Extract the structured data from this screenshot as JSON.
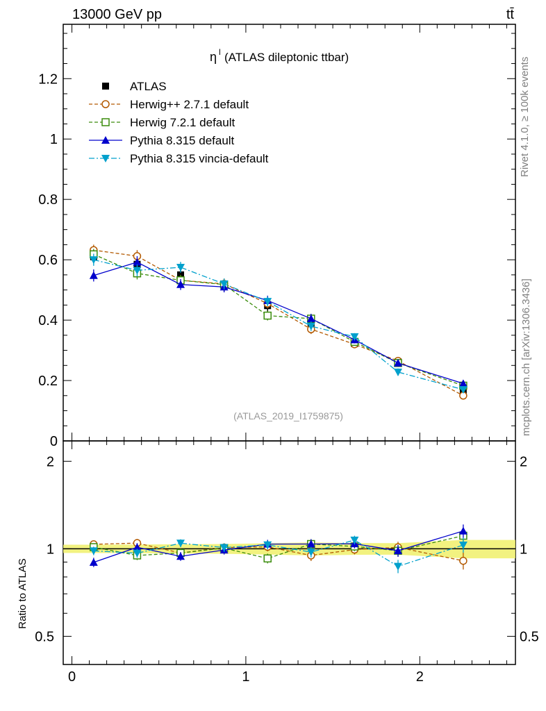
{
  "header": {
    "left": "13000 GeV pp",
    "right": "tt̄"
  },
  "side": {
    "rivet": "Rivet 4.1.0, ≥ 100k events",
    "mcplots": "mcplots.cern.ch [arXiv:1306.3436]"
  },
  "chart_data": {
    "type": "line",
    "title": "η",
    "title_sup": "l",
    "title_rest": "(ATLAS dileptonic ttbar)",
    "watermark": "(ATLAS_2019_I1759875)",
    "xlim": [
      -0.05,
      2.55
    ],
    "ylim": [
      0,
      1.38
    ],
    "ratio_ylim": [
      0.4,
      2.35
    ],
    "ratio_ylabel": "Ratio to ATLAS",
    "x": [
      0.125,
      0.375,
      0.625,
      0.875,
      1.125,
      1.375,
      1.625,
      1.875,
      2.25
    ],
    "x_ticks": [
      {
        "v": 0,
        "label": "0"
      },
      {
        "v": 1,
        "label": "1"
      },
      {
        "v": 2,
        "label": "2"
      }
    ],
    "y_ticks": [
      {
        "v": 0,
        "label": "0"
      },
      {
        "v": 0.2,
        "label": "0.2"
      },
      {
        "v": 0.4,
        "label": "0.4"
      },
      {
        "v": 0.6,
        "label": "0.6"
      },
      {
        "v": 0.8,
        "label": "0.8"
      },
      {
        "v": 1.0,
        "label": "1"
      },
      {
        "v": 1.2,
        "label": "1.2"
      }
    ],
    "ratio_ticks": [
      {
        "v": 0.5,
        "label": "0.5"
      },
      {
        "v": 1,
        "label": "1"
      },
      {
        "v": 2,
        "label": "2"
      }
    ],
    "data": {
      "name": "ATLAS",
      "values": [
        0.61,
        0.585,
        0.55,
        0.515,
        0.448,
        0.39,
        0.322,
        0.262,
        0.165
      ],
      "errors": [
        0.02,
        0.02,
        0.02,
        0.02,
        0.02,
        0.02,
        0.015,
        0.012,
        0.012
      ]
    },
    "series": [
      {
        "name": "Herwig++ 2.7.1 default",
        "color": "#b35900",
        "marker": "circle",
        "dash": "5,3",
        "values": [
          0.632,
          0.612,
          0.532,
          0.52,
          0.455,
          0.37,
          0.32,
          0.265,
          0.15
        ],
        "errors": [
          0.018,
          0.02,
          0.018,
          0.018,
          0.016,
          0.016,
          0.012,
          0.012,
          0.01
        ]
      },
      {
        "name": "Herwig 7.2.1 default",
        "color": "#3a8c0c",
        "marker": "square",
        "dash": "5,3",
        "values": [
          0.618,
          0.555,
          0.532,
          0.518,
          0.415,
          0.405,
          0.328,
          0.258,
          0.183
        ],
        "errors": [
          0.018,
          0.02,
          0.018,
          0.018,
          0.016,
          0.016,
          0.012,
          0.012,
          0.01
        ]
      },
      {
        "name": "Pythia 8.315 default",
        "color": "#0000cc",
        "marker": "triangle-up",
        "dash": "",
        "values": [
          0.548,
          0.592,
          0.518,
          0.51,
          0.465,
          0.405,
          0.335,
          0.258,
          0.19
        ],
        "errors": [
          0.02,
          0.02,
          0.018,
          0.018,
          0.016,
          0.016,
          0.012,
          0.012,
          0.01
        ]
      },
      {
        "name": "Pythia 8.315 vincia-default",
        "color": "#00a0cc",
        "marker": "triangle-down",
        "dash": "8,3,2,3",
        "values": [
          0.6,
          0.565,
          0.575,
          0.52,
          0.462,
          0.38,
          0.345,
          0.228,
          0.17
        ],
        "errors": [
          0.02,
          0.02,
          0.018,
          0.018,
          0.016,
          0.016,
          0.012,
          0.012,
          0.01
        ]
      }
    ]
  }
}
